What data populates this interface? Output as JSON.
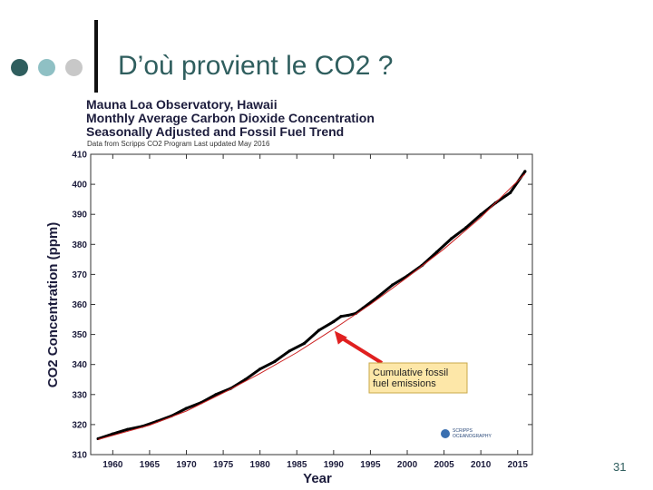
{
  "slide": {
    "title": "D’où provient le CO2 ?",
    "page_number": "31"
  },
  "colors": {
    "accent_dark": "#2f5e5e",
    "accent_light": "#8fc0c4",
    "accent_gray": "#c8c8c8",
    "observed_series": "#000000",
    "trend_series": "#cc2222",
    "annotation_box": "#fde7a8",
    "annotation_arrow": "#e02020"
  },
  "chart_data": {
    "type": "line",
    "title": [
      "Mauna Loa Observatory, Hawaii",
      "Monthly Average Carbon Dioxide Concentration",
      "Seasonally Adjusted and Fossil Fuel Trend"
    ],
    "source_note": "Data from Scripps CO2 Program     Last updated May 2016",
    "xlabel": "Year",
    "ylabel": "CO2 Concentration (ppm)",
    "xlim": [
      1957,
      2017
    ],
    "ylim": [
      310,
      410
    ],
    "xticks": [
      1960,
      1965,
      1970,
      1975,
      1980,
      1985,
      1990,
      1995,
      2000,
      2005,
      2010,
      2015
    ],
    "yticks": [
      310,
      320,
      330,
      340,
      350,
      360,
      370,
      380,
      390,
      400,
      410
    ],
    "series": [
      {
        "kind": "observed",
        "x": [
          1958,
          1960,
          1962,
          1964,
          1966,
          1968,
          1970,
          1972,
          1974,
          1976,
          1978,
          1980,
          1982,
          1984,
          1986,
          1988,
          1990,
          1991,
          1992,
          1993,
          1994,
          1996,
          1998,
          2000,
          2002,
          2004,
          2006,
          2008,
          2010,
          2012,
          2014,
          2016
        ],
        "y": [
          315.3,
          316.9,
          318.4,
          319.4,
          321.1,
          322.9,
          325.4,
          327.3,
          330.0,
          332.0,
          335.0,
          338.5,
          341.0,
          344.5,
          347.0,
          351.4,
          354.3,
          356.0,
          356.4,
          357.0,
          358.8,
          362.5,
          366.5,
          369.5,
          373.0,
          377.4,
          381.9,
          385.6,
          389.9,
          393.8,
          397.2,
          404.3
        ]
      },
      {
        "kind": "trend",
        "x": [
          1958,
          1965,
          1970,
          1975,
          1980,
          1985,
          1990,
          1995,
          2000,
          2005,
          2010,
          2016
        ],
        "y": [
          315.0,
          319.8,
          324.5,
          330.5,
          337.0,
          344.0,
          351.8,
          360.0,
          369.0,
          378.5,
          389.0,
          403.5
        ]
      }
    ],
    "annotations": [
      {
        "text": [
          "Cumulative fossil",
          "fuel emissions"
        ],
        "points_to_x": 1990
      }
    ],
    "logo_text": [
      "SCRIPPS",
      "OCEANOGRAPHY"
    ],
    "grid": false
  }
}
